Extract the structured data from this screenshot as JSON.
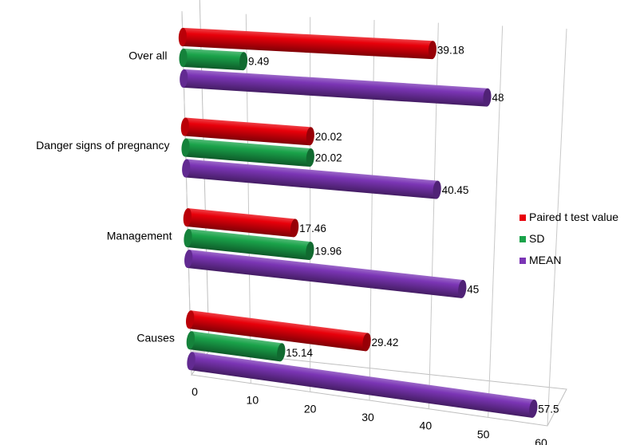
{
  "chart_data": {
    "type": "bar",
    "orientation": "horizontal",
    "style": "3d-cylinder",
    "categories": [
      "Causes",
      "Management",
      "Danger signs of pregnancy",
      "Over all"
    ],
    "series": [
      {
        "name": "Paired t test value",
        "color": "#e8000a",
        "values": [
          29.42,
          17.46,
          20.02,
          39.18
        ],
        "labels": [
          "29.42",
          "17.46",
          "20.02",
          "39.18"
        ]
      },
      {
        "name": "SD",
        "color": "#1aa34a",
        "values": [
          15.14,
          19.96,
          20.02,
          9.49
        ],
        "labels": [
          "15.14",
          "19.96",
          "20.02",
          "9.49"
        ]
      },
      {
        "name": "MEAN",
        "color": "#7b35b5",
        "values": [
          57.5,
          45,
          40.45,
          48
        ],
        "labels": [
          "57.5",
          "45",
          "40.45",
          "48"
        ]
      }
    ],
    "xlim": [
      0,
      60
    ],
    "xticks": [
      "0",
      "10",
      "20",
      "30",
      "40",
      "50",
      "60"
    ],
    "grid": true,
    "legend_position": "right"
  }
}
